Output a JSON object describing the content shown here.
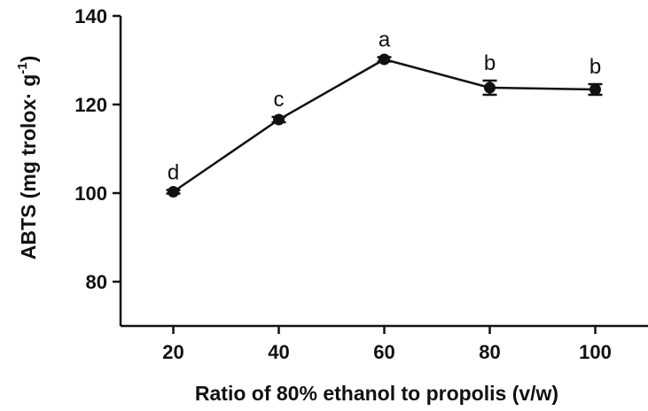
{
  "chart_data": {
    "type": "line",
    "xlabel": "Ratio of 80% ethanol to propolis (v/w)",
    "ylabel": {
      "prefix": "ABTS (mg trolox· g",
      "superscript": "-1",
      "suffix": ")"
    },
    "x_ticks": [
      "20",
      "40",
      "60",
      "80",
      "100"
    ],
    "y_ticks": [
      "80",
      "100",
      "120",
      "140"
    ],
    "x": [
      20,
      40,
      60,
      80,
      100
    ],
    "series": [
      {
        "values": [
          100.3,
          116.6,
          130.2,
          123.8,
          123.4
        ],
        "error": [
          0.4,
          0.6,
          0.5,
          1.6,
          1.2
        ],
        "annotations": [
          "d",
          "c",
          "a",
          "b",
          "b"
        ]
      }
    ],
    "xlim": [
      10,
      110
    ],
    "ylim": [
      70,
      140
    ],
    "grid": false,
    "legend": "none",
    "colors": {
      "line": "#111111",
      "marker": "#111111",
      "axis": "#111111"
    }
  }
}
